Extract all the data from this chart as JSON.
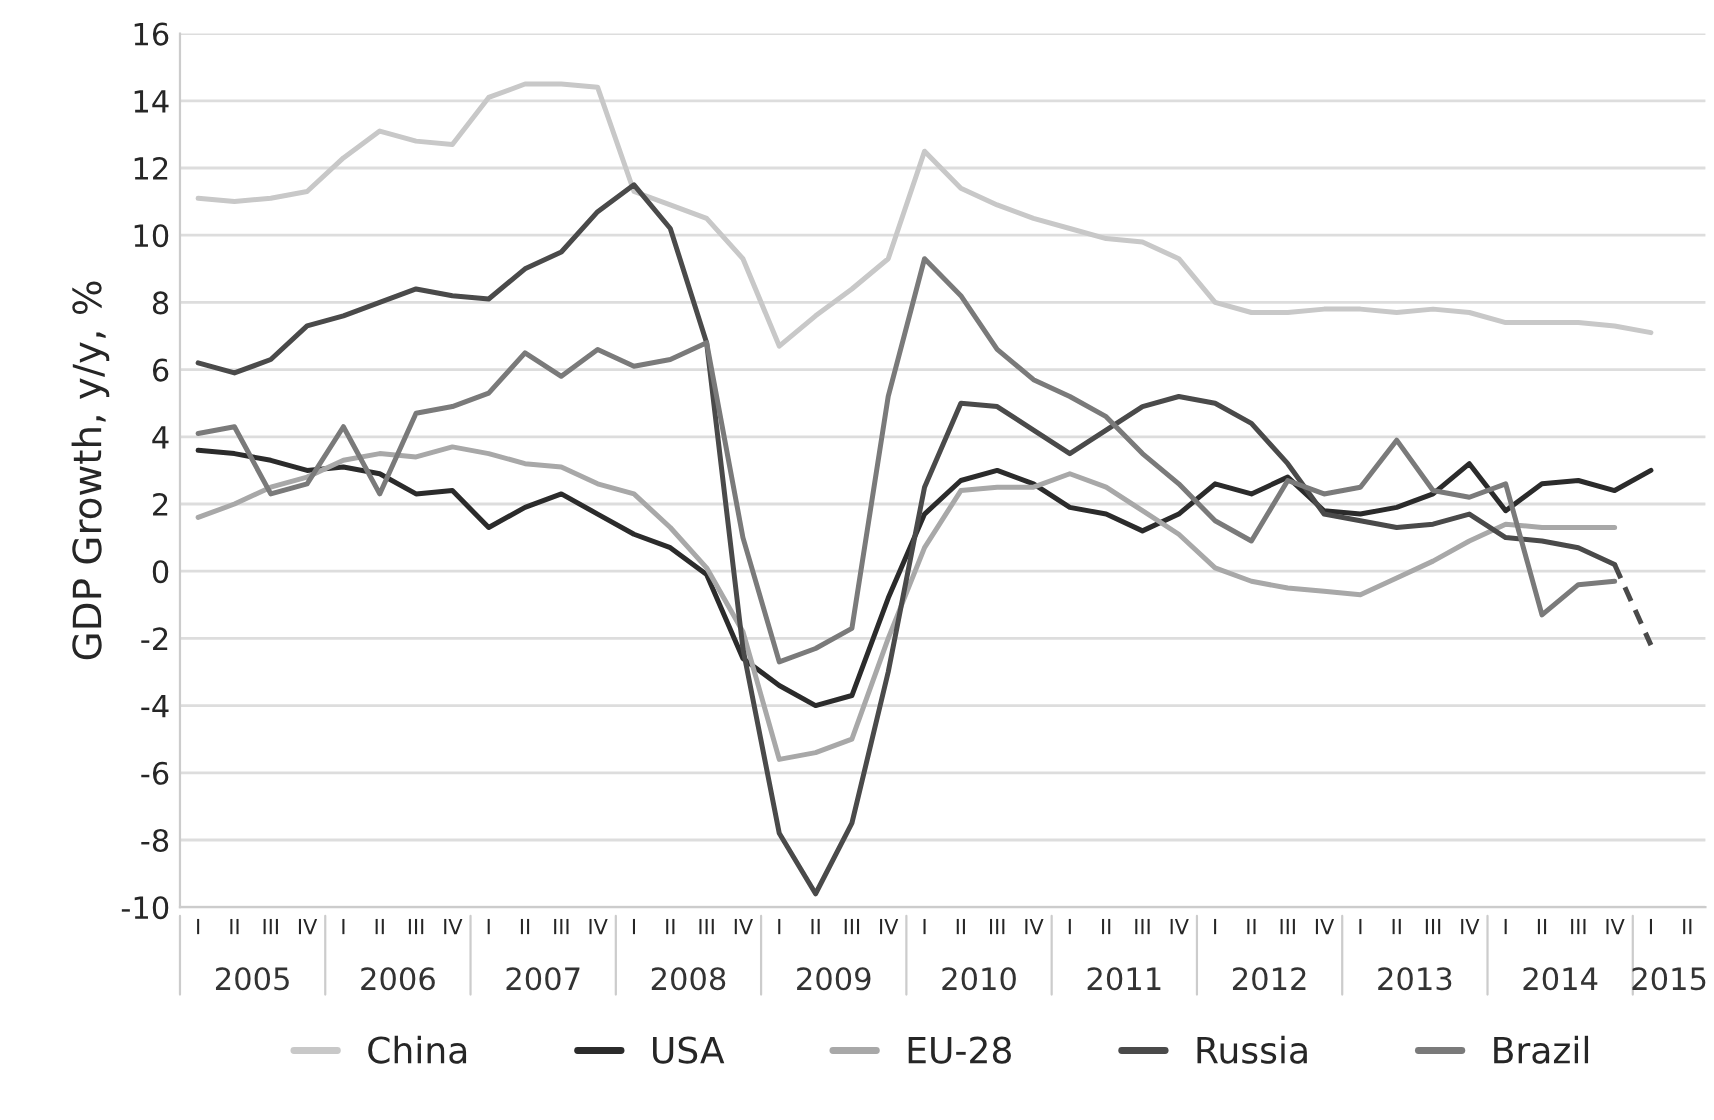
{
  "chart_data": {
    "type": "line",
    "ylabel": "GDP Growth, y/y, %",
    "categories": [
      "I",
      "II",
      "III",
      "IV",
      "I",
      "II",
      "III",
      "IV",
      "I",
      "II",
      "III",
      "IV",
      "I",
      "II",
      "III",
      "IV",
      "I",
      "II",
      "III",
      "IV",
      "I",
      "II",
      "III",
      "IV",
      "I",
      "II",
      "III",
      "IV",
      "I",
      "II",
      "III",
      "IV",
      "I",
      "II",
      "III",
      "IV",
      "I",
      "II",
      "III",
      "IV",
      "I",
      "II"
    ],
    "annotations": [
      "2005",
      "2006",
      "2007",
      "2008",
      "2009",
      "2010",
      "2011",
      "2012",
      "2013",
      "2014",
      "2015"
    ],
    "series": [
      {
        "name": "China",
        "color": "#c8c8c8",
        "values": [
          11.1,
          11.0,
          11.1,
          11.3,
          12.3,
          13.1,
          12.8,
          12.7,
          14.1,
          14.5,
          14.5,
          14.4,
          11.3,
          10.9,
          10.5,
          9.3,
          6.7,
          7.6,
          8.4,
          9.3,
          12.5,
          11.4,
          10.9,
          10.5,
          10.2,
          9.9,
          9.8,
          9.3,
          8.0,
          7.7,
          7.7,
          7.8,
          7.8,
          7.7,
          7.8,
          7.7,
          7.4,
          7.4,
          7.4,
          7.3,
          7.1,
          null
        ]
      },
      {
        "name": "USA",
        "color": "#2b2b2b",
        "values": [
          3.6,
          3.5,
          3.3,
          3.0,
          3.1,
          2.9,
          2.3,
          2.4,
          1.3,
          1.9,
          2.3,
          1.7,
          1.1,
          0.7,
          -0.1,
          -2.6,
          -3.4,
          -4.0,
          -3.7,
          -0.8,
          1.7,
          2.7,
          3.0,
          2.6,
          1.9,
          1.7,
          1.2,
          1.7,
          2.6,
          2.3,
          2.8,
          1.8,
          1.7,
          1.9,
          2.3,
          3.2,
          1.8,
          2.6,
          2.7,
          2.4,
          3.0,
          null
        ]
      },
      {
        "name": "EU-28",
        "color": "#a8a8a8",
        "values": [
          1.6,
          2.0,
          2.5,
          2.8,
          3.3,
          3.5,
          3.4,
          3.7,
          3.5,
          3.2,
          3.1,
          2.6,
          2.3,
          1.3,
          0.1,
          -1.8,
          -5.6,
          -5.4,
          -5.0,
          -2.0,
          0.7,
          2.4,
          2.5,
          2.5,
          2.9,
          2.5,
          1.8,
          1.1,
          0.1,
          -0.3,
          -0.5,
          -0.6,
          -0.7,
          -0.2,
          0.3,
          0.9,
          1.4,
          1.3,
          1.3,
          1.3,
          null,
          null
        ]
      },
      {
        "name": "Russia",
        "color": "#4a4a4a",
        "values": [
          6.2,
          5.9,
          6.3,
          7.3,
          7.6,
          8.0,
          8.4,
          8.2,
          8.1,
          9.0,
          9.5,
          10.7,
          11.5,
          10.2,
          6.8,
          -2.3,
          -7.8,
          -9.6,
          -7.5,
          -3.0,
          2.5,
          5.0,
          4.9,
          4.2,
          3.5,
          4.2,
          4.9,
          5.2,
          5.0,
          4.4,
          3.2,
          1.7,
          1.5,
          1.3,
          1.4,
          1.7,
          1.0,
          0.9,
          0.7,
          0.2,
          null,
          null
        ]
      },
      {
        "color": "#4a4a4a",
        "line_style": "dashed",
        "values": [
          null,
          null,
          null,
          null,
          null,
          null,
          null,
          null,
          null,
          null,
          null,
          null,
          null,
          null,
          null,
          null,
          null,
          null,
          null,
          null,
          null,
          null,
          null,
          null,
          null,
          null,
          null,
          null,
          null,
          null,
          null,
          null,
          null,
          null,
          null,
          null,
          null,
          null,
          null,
          0.2,
          -2.2,
          null
        ]
      },
      {
        "name": "Brazil",
        "color": "#7a7a7a",
        "values": [
          4.1,
          4.3,
          2.3,
          2.6,
          4.3,
          2.3,
          4.7,
          4.9,
          5.3,
          6.5,
          5.8,
          6.6,
          6.1,
          6.3,
          6.8,
          1.0,
          -2.7,
          -2.3,
          -1.7,
          5.2,
          9.3,
          8.2,
          6.6,
          5.7,
          5.2,
          4.6,
          3.5,
          2.6,
          1.5,
          0.9,
          2.7,
          2.3,
          2.5,
          3.9,
          2.4,
          2.2,
          2.6,
          -1.3,
          -0.4,
          -0.3,
          null,
          null
        ]
      }
    ],
    "ylim": [
      -10,
      16
    ],
    "yticks": [
      -10,
      -8,
      -6,
      -4,
      -2,
      0,
      2,
      4,
      6,
      8,
      10,
      12,
      14,
      16
    ],
    "grid": "y",
    "legend": "bottom",
    "line_style": "solid",
    "marker": "none"
  }
}
